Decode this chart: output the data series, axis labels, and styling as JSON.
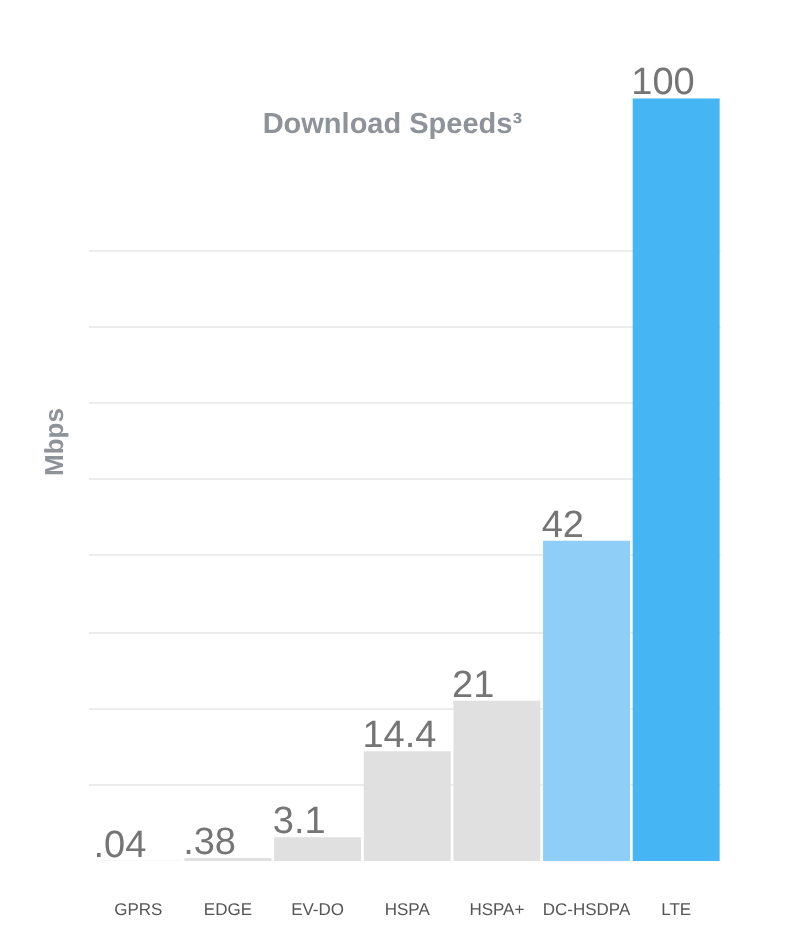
{
  "chart_data": {
    "type": "bar",
    "title": "Download Speeds³",
    "ylabel": "Mbps",
    "categories": [
      "GPRS",
      "EDGE",
      "EV-DO",
      "HSPA",
      "HSPA+",
      "DC-HSDPA",
      "LTE"
    ],
    "values": [
      0.04,
      0.38,
      3.1,
      14.4,
      21,
      42,
      100
    ],
    "value_labels": [
      ".04",
      ".38",
      "3.1",
      "14.4",
      "21",
      "42",
      "100"
    ],
    "colors": [
      "#e0e0e0",
      "#e0e0e0",
      "#e0e0e0",
      "#e0e0e0",
      "#e0e0e0",
      "#8fcff7",
      "#45b5f3"
    ],
    "yticks": [
      {
        "value": 10,
        "label": null
      },
      {
        "value": 20,
        "label": null
      },
      {
        "value": 30,
        "label": null
      },
      {
        "value": 40,
        "label": null
      },
      {
        "value": 50,
        "label": null
      },
      {
        "value": 60,
        "label": null
      },
      {
        "value": 70,
        "label": null
      },
      {
        "value": 80,
        "label": null
      }
    ],
    "grid": "y",
    "tick_labels": "x"
  }
}
